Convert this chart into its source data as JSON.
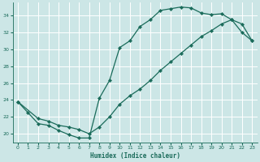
{
  "xlabel": "Humidex (Indice chaleur)",
  "bg_color": "#cce6e6",
  "line_color": "#1a6b5a",
  "grid_color": "#b8d8d8",
  "xlim": [
    -0.5,
    23.5
  ],
  "ylim": [
    19.0,
    35.5
  ],
  "xticks": [
    0,
    1,
    2,
    3,
    4,
    5,
    6,
    7,
    8,
    9,
    10,
    11,
    12,
    13,
    14,
    15,
    16,
    17,
    18,
    19,
    20,
    21,
    22,
    23
  ],
  "yticks": [
    20,
    22,
    24,
    26,
    28,
    30,
    32,
    34
  ],
  "line1_x": [
    0,
    1,
    2,
    3,
    4,
    5,
    6,
    7,
    8,
    9,
    10,
    11,
    12,
    13,
    14,
    15,
    16,
    17,
    18,
    19,
    20,
    21,
    22,
    23
  ],
  "line1_y": [
    23.8,
    22.5,
    21.2,
    21.0,
    20.4,
    19.9,
    19.5,
    19.5,
    24.2,
    26.3,
    30.2,
    31.0,
    32.7,
    33.5,
    34.6,
    34.8,
    35.0,
    34.9,
    34.3,
    34.1,
    34.2,
    33.5,
    32.0,
    31.0
  ],
  "line2_x": [
    0,
    2,
    3,
    4,
    5,
    6,
    7,
    8,
    9,
    10,
    11,
    12,
    13,
    14,
    15,
    16,
    17,
    18,
    19,
    20,
    21,
    22,
    23
  ],
  "line2_y": [
    23.8,
    21.8,
    21.5,
    21.0,
    20.8,
    20.5,
    20.0,
    20.8,
    22.0,
    23.5,
    24.5,
    25.3,
    26.3,
    27.5,
    28.5,
    29.5,
    30.5,
    31.5,
    32.2,
    33.0,
    33.5,
    33.0,
    31.0
  ]
}
